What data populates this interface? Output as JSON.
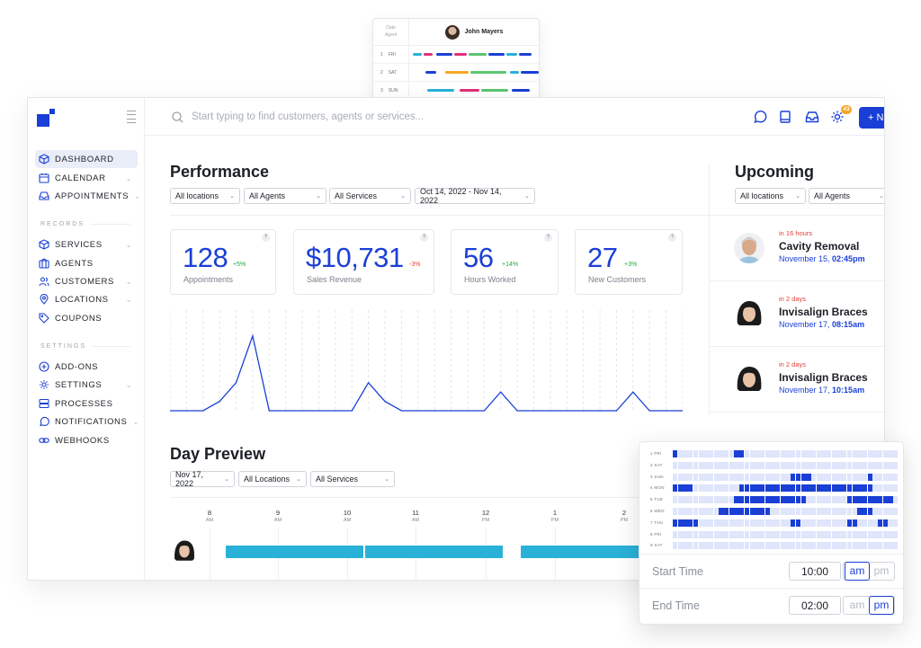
{
  "mini_schedule": {
    "date_label": "Date",
    "agent_label": "Agent",
    "agent_name": "John Mayers",
    "rows": [
      {
        "num": "1",
        "day": "FRI"
      },
      {
        "num": "2",
        "day": "SAT"
      },
      {
        "num": "3",
        "day": "SUN"
      }
    ]
  },
  "sidebar": {
    "items": [
      {
        "label": "DASHBOARD",
        "icon": "cube-icon",
        "active": true
      },
      {
        "label": "CALENDAR",
        "icon": "calendar-icon",
        "chevron": true
      },
      {
        "label": "APPOINTMENTS",
        "icon": "inbox-icon",
        "chevron": true
      }
    ],
    "records_label": "RECORDS",
    "records": [
      {
        "label": "SERVICES",
        "icon": "cube-icon",
        "chevron": true
      },
      {
        "label": "AGENTS",
        "icon": "agents-icon"
      },
      {
        "label": "CUSTOMERS",
        "icon": "customers-icon",
        "chevron": true
      },
      {
        "label": "LOCATIONS",
        "icon": "location-pin-icon",
        "chevron": true
      },
      {
        "label": "COUPONS",
        "icon": "tag-icon"
      }
    ],
    "settings_label": "SETTINGS",
    "settings": [
      {
        "label": "ADD-ONS",
        "icon": "plus-circle-icon"
      },
      {
        "label": "SETTINGS",
        "icon": "gear-icon",
        "chevron": true
      },
      {
        "label": "PROCESSES",
        "icon": "processes-icon"
      },
      {
        "label": "NOTIFICATIONS",
        "icon": "chat-icon",
        "chevron": true
      },
      {
        "label": "WEBHOOKS",
        "icon": "link-icon"
      }
    ]
  },
  "topbar": {
    "search_placeholder": "Start typing to find customers, agents or services...",
    "badge_count": "43",
    "new_button": "+ N"
  },
  "performance": {
    "title": "Performance",
    "filters": [
      "All locations",
      "All Agents",
      "All Services",
      "Oct 14, 2022 - Nov 14, 2022"
    ],
    "cards": [
      {
        "value": "128",
        "change": "+5%",
        "trend": "up",
        "label": "Appointments"
      },
      {
        "value": "$10,731",
        "change": "-3%",
        "trend": "down",
        "label": "Sales Revenue"
      },
      {
        "value": "56",
        "change": "+14%",
        "trend": "up",
        "label": "Hours Worked"
      },
      {
        "value": "27",
        "change": "+3%",
        "trend": "up",
        "label": "New Customers"
      }
    ],
    "help_glyph": "?"
  },
  "chart_data": {
    "type": "line",
    "x": [
      0,
      1,
      2,
      3,
      4,
      5,
      6,
      7,
      8,
      9,
      10,
      11,
      12,
      13,
      14,
      15,
      16,
      17,
      18,
      19,
      20,
      21,
      22,
      23,
      24,
      25,
      26,
      27,
      28,
      29,
      30,
      31
    ],
    "series": [
      {
        "values": [
          0,
          0,
          0,
          1,
          3,
          8,
          0,
          0,
          0,
          0,
          0,
          0,
          3,
          1,
          0,
          0,
          0,
          0,
          0,
          0,
          2,
          0,
          0,
          0,
          0,
          0,
          0,
          0,
          2,
          0,
          0,
          0
        ]
      }
    ],
    "ylim": [
      0,
      10
    ],
    "grid": true,
    "color": "#1a3fd6"
  },
  "upcoming": {
    "title": "Upcoming",
    "filters": [
      "All locations",
      "All Agents"
    ],
    "items": [
      {
        "when": "in 16 hours",
        "name": "Cavity Removal",
        "date": "November 15,",
        "time": "02:45pm"
      },
      {
        "when": "in 2 days",
        "name": "Invisalign Braces",
        "date": "November 17,",
        "time": "08:15am"
      },
      {
        "when": "in 2 days",
        "name": "Invisalign Braces",
        "date": "November 17,",
        "time": "10:15am"
      }
    ]
  },
  "day_preview": {
    "title": "Day Preview",
    "filters": [
      "Nov 17, 2022",
      "All Locations",
      "All Services"
    ],
    "hours": [
      {
        "h": "8",
        "p": "AM"
      },
      {
        "h": "9",
        "p": "AM"
      },
      {
        "h": "10",
        "p": "AM"
      },
      {
        "h": "11",
        "p": "AM"
      },
      {
        "h": "12",
        "p": "PM"
      },
      {
        "h": "1",
        "p": "PM"
      },
      {
        "h": "2",
        "p": "PM"
      }
    ]
  },
  "time_picker": {
    "days": [
      {
        "n": "1",
        "d": "FRI",
        "on": [
          0,
          12,
          13
        ]
      },
      {
        "n": "2",
        "d": "SAT",
        "on": []
      },
      {
        "n": "3",
        "d": "SUN",
        "on": [
          23,
          24,
          25,
          26,
          38
        ]
      },
      {
        "n": "4",
        "d": "MON",
        "on": [
          0,
          1,
          2,
          3,
          13,
          14,
          15,
          16,
          17,
          18,
          19,
          20,
          21,
          22,
          23,
          24,
          25,
          26,
          27,
          28,
          29,
          30,
          31,
          32,
          33,
          34,
          35,
          36,
          37,
          38
        ]
      },
      {
        "n": "5",
        "d": "TUE",
        "on": [
          12,
          13,
          14,
          15,
          16,
          17,
          18,
          19,
          20,
          21,
          22,
          23,
          24,
          25,
          34,
          35,
          36,
          37,
          38,
          39,
          40,
          41,
          42
        ]
      },
      {
        "n": "6",
        "d": "WED",
        "on": [
          9,
          10,
          11,
          12,
          13,
          14,
          15,
          16,
          17,
          18,
          36,
          37,
          38
        ]
      },
      {
        "n": "7",
        "d": "THU",
        "on": [
          0,
          1,
          2,
          3,
          4,
          23,
          24,
          34,
          35,
          40,
          41
        ]
      },
      {
        "n": "8",
        "d": "FRI",
        "on": []
      },
      {
        "n": "9",
        "d": "SAT",
        "on": []
      }
    ],
    "start_label": "Start Time",
    "start_value": "10:00",
    "start_period": "am",
    "end_label": "End Time",
    "end_value": "02:00",
    "end_period": "pm",
    "am": "am",
    "pm": "pm"
  }
}
